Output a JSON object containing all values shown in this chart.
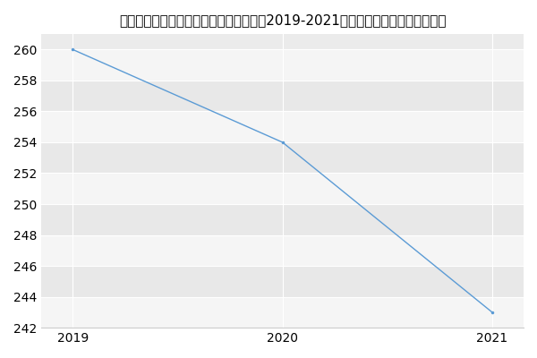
{
  "title": "内蒙古工业大学土木工程学院土木工程（2019-2021历年复试）研究生录取分数线",
  "x": [
    2019,
    2020,
    2021
  ],
  "y": [
    260,
    254,
    243
  ],
  "line_color": "#5b9bd5",
  "background_color": "#ffffff",
  "plot_bg_color": "#ebebeb",
  "band_color_light": "#f5f5f5",
  "band_color_dark": "#e8e8e8",
  "xlim": [
    2018.85,
    2021.15
  ],
  "ylim": [
    242,
    261
  ],
  "yticks": [
    242,
    244,
    246,
    248,
    250,
    252,
    254,
    256,
    258,
    260
  ],
  "xticks": [
    2019,
    2020,
    2021
  ],
  "title_fontsize": 11,
  "grid_color": "#ffffff",
  "line_width": 1.0,
  "marker_size": 1.5
}
